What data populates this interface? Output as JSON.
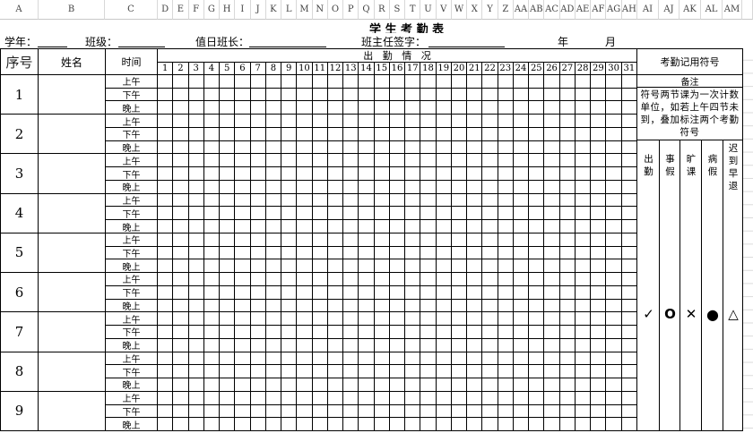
{
  "column_headers": [
    "A",
    "B",
    "C",
    "D",
    "E",
    "F",
    "G",
    "H",
    "I",
    "J",
    "K",
    "L",
    "M",
    "N",
    "O",
    "P",
    "Q",
    "R",
    "S",
    "T",
    "U",
    "V",
    "W",
    "X",
    "Y",
    "Z",
    "AA",
    "AB",
    "AC",
    "AD",
    "AE",
    "AF",
    "AG",
    "AH",
    "AI",
    "AJ",
    "AK",
    "AL",
    "AM"
  ],
  "title": "学 生 考 勤 表",
  "info": {
    "year_label": "学年：",
    "class_label": "班级：",
    "monitor_label": "值日班长：",
    "teacher_label": "班主任签字：",
    "year_unit": "年",
    "month_unit": "月"
  },
  "table_header": {
    "no": "序号",
    "name": "姓名",
    "time": "时间",
    "attendance": "出   勤   情   况",
    "days": [
      "1",
      "2",
      "3",
      "4",
      "5",
      "6",
      "7",
      "8",
      "9",
      "10",
      "11",
      "12",
      "13",
      "14",
      "15",
      "16",
      "17",
      "18",
      "19",
      "20",
      "21",
      "22",
      "23",
      "24",
      "25",
      "26",
      "27",
      "28",
      "29",
      "30",
      "31"
    ]
  },
  "periods": [
    "上午",
    "下午",
    "晚上"
  ],
  "students": [
    {
      "no": "1",
      "name": ""
    },
    {
      "no": "2",
      "name": ""
    },
    {
      "no": "3",
      "name": ""
    },
    {
      "no": "4",
      "name": ""
    },
    {
      "no": "5",
      "name": ""
    },
    {
      "no": "6",
      "name": ""
    },
    {
      "no": "7",
      "name": ""
    },
    {
      "no": "8",
      "name": ""
    },
    {
      "no": "9",
      "name": ""
    }
  ],
  "legend": {
    "title": "考勤记用符号",
    "remark_label": "备注",
    "remark_text": "符号两节课为一次计数单位，如若上午四节未到，叠加标注两个考勤符号",
    "types": [
      {
        "label": "出勤",
        "symbol": "✓"
      },
      {
        "label": "事假",
        "symbol": "O"
      },
      {
        "label": "旷课",
        "symbol": "✕"
      },
      {
        "label": "病假",
        "symbol": "●"
      },
      {
        "label": "迟到早退",
        "symbol": "△"
      }
    ]
  }
}
